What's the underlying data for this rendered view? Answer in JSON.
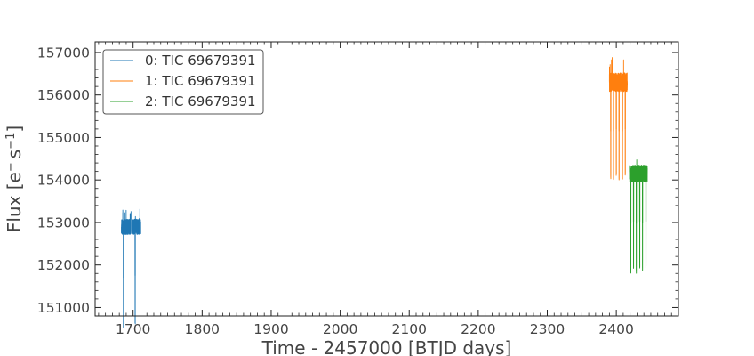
{
  "chart_data": {
    "type": "line",
    "xlabel": "Time - 2457000 [BTJD days]",
    "ylabel_main": "Flux [e",
    "ylabel_sup1": "−",
    "ylabel_mid": "s",
    "ylabel_sup2": "−1",
    "ylabel_end": "]",
    "xlim": [
      1645,
      2490
    ],
    "ylim": [
      150800,
      157250
    ],
    "x_ticks": [
      1700,
      1800,
      1900,
      2000,
      2100,
      2200,
      2300,
      2400
    ],
    "x_tick_labels": [
      "1700",
      "1800",
      "1900",
      "2000",
      "2100",
      "2200",
      "2300",
      "2400"
    ],
    "y_ticks": [
      151000,
      152000,
      153000,
      154000,
      155000,
      156000,
      157000
    ],
    "y_tick_labels": [
      "151000",
      "152000",
      "153000",
      "154000",
      "155000",
      "156000",
      "157000"
    ],
    "legend_position": "top-left",
    "series": [
      {
        "name": "0: TIC 69679391",
        "color": "#1f77b4",
        "x_range": [
          1683,
          1711
        ],
        "baseline": 152900,
        "noise": 180,
        "dips": [
          {
            "x": 1686,
            "y": 150500
          },
          {
            "x": 1703,
            "y": 150600
          }
        ],
        "gap": [
          1697,
          1699
        ],
        "peak_max": 153400
      },
      {
        "name": "1: TIC 69679391",
        "color": "#ff7f0e",
        "x_range": [
          2390,
          2416
        ],
        "baseline": 156300,
        "noise": 220,
        "dips": [
          {
            "x": 2392,
            "y": 154000
          },
          {
            "x": 2396,
            "y": 154000
          },
          {
            "x": 2400,
            "y": 154100
          },
          {
            "x": 2404,
            "y": 154000
          },
          {
            "x": 2409,
            "y": 154000
          },
          {
            "x": 2413,
            "y": 154100
          }
        ],
        "gap": [
          2406,
          2407
        ],
        "peak_max": 156950
      },
      {
        "name": "2: TIC 69679391",
        "color": "#2ca02c",
        "x_range": [
          2419,
          2445
        ],
        "baseline": 154150,
        "noise": 200,
        "dips": [
          {
            "x": 2421,
            "y": 151800
          },
          {
            "x": 2425,
            "y": 151900
          },
          {
            "x": 2429,
            "y": 151800
          },
          {
            "x": 2434,
            "y": 151900
          },
          {
            "x": 2438,
            "y": 151850
          },
          {
            "x": 2443,
            "y": 151900
          }
        ],
        "gap": [
          2431,
          2432
        ],
        "peak_max": 154550
      }
    ]
  }
}
